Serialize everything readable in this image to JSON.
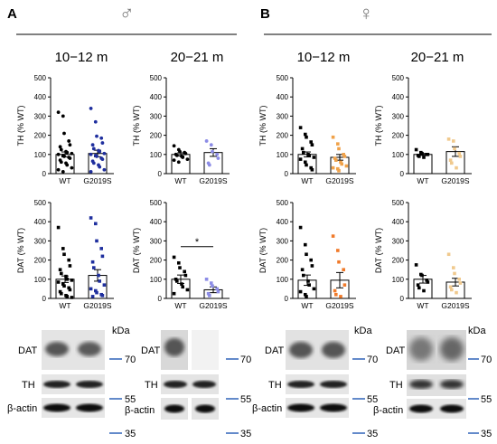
{
  "figure": {
    "panels": [
      {
        "letter": "A",
        "sex_symbol": "♂"
      },
      {
        "letter": "B",
        "sex_symbol": "♀"
      }
    ],
    "age_groups": [
      "10−12 m",
      "20−21 m",
      "10−12 m",
      "20−21 m"
    ],
    "significance_label": "*"
  },
  "colors": {
    "WT": "#000000",
    "male_young": "#1f2f9e",
    "male_old": "#8c8ce6",
    "female_young": "#f0a24a",
    "female_old": "#f0c98d",
    "DAT_female_young": "#f07a2a"
  },
  "chart_data": [
    {
      "type": "bar",
      "panel": "A",
      "age": "10−12 m",
      "ylabel": "TH (% WT)",
      "ylim": [
        0,
        500
      ],
      "yticks": [
        0,
        100,
        200,
        300,
        400,
        500
      ],
      "categories": [
        "WT",
        "G2019S"
      ],
      "means": [
        100,
        105
      ],
      "sem": [
        13,
        17
      ],
      "points": [
        [
          320,
          300,
          210,
          170,
          150,
          140,
          125,
          115,
          110,
          105,
          100,
          95,
          90,
          85,
          80,
          70,
          60,
          55,
          45,
          30,
          20,
          10
        ],
        [
          340,
          270,
          195,
          185,
          160,
          150,
          130,
          120,
          115,
          105,
          100,
          95,
          90,
          80,
          75,
          65,
          55,
          45,
          35,
          20,
          10
        ]
      ]
    },
    {
      "type": "bar",
      "panel": "A",
      "age": "20−21 m",
      "ylabel": "TH (% WT)",
      "ylim": [
        0,
        500
      ],
      "yticks": [
        0,
        100,
        200,
        300,
        400,
        500
      ],
      "categories": [
        "WT",
        "G2019S"
      ],
      "means": [
        100,
        110
      ],
      "sem": [
        8,
        20
      ],
      "points": [
        [
          145,
          125,
          115,
          110,
          105,
          100,
          95,
          90,
          85,
          75,
          70,
          60
        ],
        [
          170,
          150,
          115,
          100,
          80,
          55,
          45
        ]
      ]
    },
    {
      "type": "bar",
      "panel": "B",
      "age": "10−12 m",
      "ylabel": "TH (% WT)",
      "ylim": [
        0,
        500
      ],
      "yticks": [
        0,
        100,
        200,
        300,
        400,
        500
      ],
      "categories": [
        "WT",
        "G2019S"
      ],
      "means": [
        100,
        85
      ],
      "sem": [
        13,
        15
      ],
      "points": [
        [
          240,
          205,
          190,
          165,
          150,
          130,
          110,
          100,
          95,
          85,
          75,
          60,
          45,
          30,
          20
        ],
        [
          190,
          155,
          130,
          100,
          90,
          80,
          70,
          60,
          50,
          40,
          30,
          25,
          15
        ]
      ]
    },
    {
      "type": "bar",
      "panel": "B",
      "age": "20−21 m",
      "ylabel": "TH (% WT)",
      "ylim": [
        0,
        500
      ],
      "yticks": [
        0,
        100,
        200,
        300,
        400,
        500
      ],
      "categories": [
        "WT",
        "G2019S"
      ],
      "means": [
        100,
        115
      ],
      "sem": [
        5,
        25
      ],
      "points": [
        [
          125,
          110,
          105,
          100,
          100,
          95,
          90,
          85
        ],
        [
          180,
          170,
          130,
          105,
          90,
          70,
          55,
          30
        ]
      ]
    },
    {
      "type": "bar",
      "panel": "A",
      "age": "10−12 m",
      "ylabel": "DAT (% WT)",
      "ylim": [
        0,
        500
      ],
      "yticks": [
        0,
        100,
        200,
        300,
        400,
        500
      ],
      "categories": [
        "WT",
        "G2019S"
      ],
      "means": [
        100,
        120
      ],
      "sem": [
        17,
        30
      ],
      "points": [
        [
          370,
          260,
          230,
          200,
          170,
          150,
          130,
          115,
          100,
          95,
          85,
          75,
          65,
          55,
          45,
          35,
          25,
          15,
          10,
          5
        ],
        [
          420,
          390,
          300,
          260,
          220,
          190,
          160,
          120,
          90,
          70,
          50,
          40,
          30,
          20,
          15,
          10
        ]
      ]
    },
    {
      "type": "bar",
      "panel": "A",
      "age": "20−21 m",
      "ylabel": "DAT (% WT)",
      "ylim": [
        0,
        500
      ],
      "yticks": [
        0,
        100,
        200,
        300,
        400,
        500
      ],
      "categories": [
        "WT",
        "G2019S"
      ],
      "means": [
        100,
        45
      ],
      "sem": [
        22,
        15
      ],
      "points": [
        [
          215,
          185,
          160,
          140,
          120,
          100,
          90,
          75,
          60,
          45,
          25
        ],
        [
          100,
          80,
          65,
          50,
          35,
          25,
          15
        ]
      ],
      "significance": {
        "between": [
          "WT",
          "G2019S"
        ],
        "at": 270,
        "label": "*"
      }
    },
    {
      "type": "bar",
      "panel": "B",
      "age": "10−12 m",
      "ylabel": "DAT (% WT)",
      "ylim": [
        0,
        500
      ],
      "yticks": [
        0,
        100,
        200,
        300,
        400,
        500
      ],
      "categories": [
        "WT",
        "G2019S"
      ],
      "means": [
        95,
        95
      ],
      "sem": [
        27,
        40
      ],
      "points": [
        [
          370,
          280,
          230,
          200,
          170,
          150,
          120,
          90,
          70,
          50,
          35,
          20,
          10
        ],
        [
          325,
          250,
          190,
          150,
          70,
          40,
          20,
          10
        ]
      ]
    },
    {
      "type": "bar",
      "panel": "B",
      "age": "20−21 m",
      "ylabel": "DAT (% WT)",
      "ylim": [
        0,
        500
      ],
      "yticks": [
        0,
        100,
        200,
        300,
        400,
        500
      ],
      "categories": [
        "WT",
        "G2019S"
      ],
      "means": [
        100,
        85
      ],
      "sem": [
        20,
        20
      ],
      "points": [
        [
          175,
          125,
          120,
          95,
          85,
          70,
          55,
          40
        ],
        [
          230,
          160,
          130,
          100,
          80,
          60,
          45,
          30
        ]
      ]
    }
  ],
  "blots": {
    "kda_label": "kDa",
    "markers": [
      "70",
      "55",
      "35"
    ],
    "row_labels": [
      "DAT",
      "TH",
      "β-actin"
    ]
  }
}
